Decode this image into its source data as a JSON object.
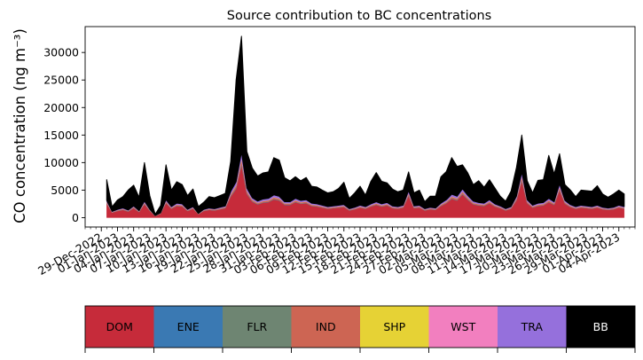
{
  "chart_data": {
    "type": "area",
    "title": "Source contribution to BC concentrations",
    "ylabel": "CO concentration (ng m⁻³)",
    "xlabel": "",
    "ylim": [
      -1700,
      34700
    ],
    "xlim": [
      "2022-12-26",
      "2023-04-07"
    ],
    "yticks": [
      0,
      5000,
      10000,
      15000,
      20000,
      25000,
      30000
    ],
    "ytick_labels": [
      "0",
      "5000",
      "10000",
      "15000",
      "20000",
      "25000",
      "30000"
    ],
    "xticks": [
      "2022-12-29",
      "2023-01-01",
      "2023-01-04",
      "2023-01-07",
      "2023-01-10",
      "2023-01-13",
      "2023-01-16",
      "2023-01-19",
      "2023-01-22",
      "2023-01-25",
      "2023-01-28",
      "2023-01-31",
      "2023-02-03",
      "2023-02-06",
      "2023-02-09",
      "2023-02-12",
      "2023-02-15",
      "2023-02-18",
      "2023-02-21",
      "2023-02-24",
      "2023-02-27",
      "2023-03-02",
      "2023-03-05",
      "2023-03-08",
      "2023-03-11",
      "2023-03-14",
      "2023-03-17",
      "2023-03-20",
      "2023-03-23",
      "2023-03-26",
      "2023-03-29",
      "2023-04-01",
      "2023-04-04"
    ],
    "xtick_labels": [
      "29-Dec-2022",
      "01-Jan-2023",
      "04-Jan-2023",
      "07-Jan-2023",
      "10-Jan-2023",
      "13-Jan-2023",
      "16-Jan-2023",
      "19-Jan-2023",
      "22-Jan-2023",
      "25-Jan-2023",
      "28-Jan-2023",
      "31-Jan-2023",
      "03-Feb-2023",
      "06-Feb-2023",
      "09-Feb-2023",
      "12-Feb-2023",
      "15-Feb-2023",
      "18-Feb-2023",
      "21-Feb-2023",
      "24-Feb-2023",
      "27-Feb-2023",
      "02-Mar-2023",
      "05-Mar-2023",
      "08-Mar-2023",
      "11-Mar-2023",
      "14-Mar-2023",
      "17-Mar-2023",
      "20-Mar-2023",
      "23-Mar-2023",
      "26-Mar-2023",
      "29-Mar-2023",
      "01-Apr-2023",
      "04-Apr-2023"
    ],
    "grid": false,
    "legend_placement": "bottom",
    "legend": [
      {
        "name": "DOM",
        "color": "#c62b3a"
      },
      {
        "name": "ENE",
        "color": "#3a79b3"
      },
      {
        "name": "FLR",
        "color": "#6e8572"
      },
      {
        "name": "IND",
        "color": "#cd6553"
      },
      {
        "name": "SHP",
        "color": "#e6d235"
      },
      {
        "name": "WST",
        "color": "#f27fbf"
      },
      {
        "name": "TRA",
        "color": "#9570dc"
      },
      {
        "name": "BB",
        "color": "#000000"
      }
    ],
    "x": [
      "2022-12-30",
      "2022-12-31",
      "2023-01-01",
      "2023-01-02",
      "2023-01-03",
      "2023-01-04",
      "2023-01-05",
      "2023-01-06",
      "2023-01-07",
      "2023-01-08",
      "2023-01-09",
      "2023-01-10",
      "2023-01-11",
      "2023-01-12",
      "2023-01-13",
      "2023-01-14",
      "2023-01-15",
      "2023-01-16",
      "2023-01-17",
      "2023-01-18",
      "2023-01-19",
      "2023-01-20",
      "2023-01-21",
      "2023-01-22",
      "2023-01-23",
      "2023-01-24",
      "2023-01-25",
      "2023-01-26",
      "2023-01-27",
      "2023-01-28",
      "2023-01-29",
      "2023-01-30",
      "2023-01-31",
      "2023-02-01",
      "2023-02-02",
      "2023-02-03",
      "2023-02-04",
      "2023-02-05",
      "2023-02-06",
      "2023-02-07",
      "2023-02-08",
      "2023-02-09",
      "2023-02-10",
      "2023-02-11",
      "2023-02-12",
      "2023-02-13",
      "2023-02-14",
      "2023-02-15",
      "2023-02-16",
      "2023-02-17",
      "2023-02-18",
      "2023-02-19",
      "2023-02-20",
      "2023-02-21",
      "2023-02-22",
      "2023-02-23",
      "2023-02-24",
      "2023-02-25",
      "2023-02-26",
      "2023-02-27",
      "2023-02-28",
      "2023-03-01",
      "2023-03-02",
      "2023-03-03",
      "2023-03-04",
      "2023-03-05",
      "2023-03-06",
      "2023-03-07",
      "2023-03-08",
      "2023-03-09",
      "2023-03-10",
      "2023-03-11",
      "2023-03-12",
      "2023-03-13",
      "2023-03-14",
      "2023-03-15",
      "2023-03-16",
      "2023-03-17",
      "2023-03-18",
      "2023-03-19",
      "2023-03-20",
      "2023-03-21",
      "2023-03-22",
      "2023-03-23",
      "2023-03-24",
      "2023-03-25",
      "2023-03-26",
      "2023-03-27",
      "2023-03-28",
      "2023-03-29",
      "2023-03-30",
      "2023-03-31",
      "2023-04-01",
      "2023-04-02",
      "2023-04-03",
      "2023-04-04",
      "2023-04-05"
    ],
    "series": [
      {
        "name": "DOM",
        "color": "#c62b3a",
        "values": [
          2500,
          900,
          1200,
          1400,
          1100,
          1700,
          1000,
          2400,
          1200,
          300,
          700,
          2600,
          1600,
          2100,
          2000,
          1200,
          1600,
          600,
          1200,
          1400,
          1300,
          1500,
          1700,
          3800,
          5200,
          9500,
          4300,
          2900,
          2400,
          2700,
          2800,
          3300,
          3100,
          2300,
          2300,
          2800,
          2500,
          2600,
          2100,
          2000,
          1800,
          1600,
          1700,
          1800,
          1900,
          1300,
          1500,
          1800,
          1600,
          2000,
          2300,
          2000,
          2200,
          1700,
          1600,
          1800,
          3900,
          1700,
          1800,
          1300,
          1500,
          1400,
          2100,
          2600,
          3400,
          3100,
          4200,
          3200,
          2400,
          2200,
          2100,
          2600,
          2000,
          1700,
          1300,
          1600,
          3100,
          6600,
          2600,
          1800,
          2100,
          2200,
          2800,
          2300,
          4900,
          2500,
          1900,
          1600,
          1800,
          1700,
          1600,
          1800,
          1500,
          1400,
          1500,
          1800,
          1600
        ]
      },
      {
        "name": "ENE",
        "color": "#3a79b3",
        "values": [
          40,
          15,
          20,
          22,
          18,
          28,
          16,
          40,
          20,
          5,
          12,
          42,
          26,
          34,
          32,
          20,
          26,
          10,
          20,
          22,
          21,
          24,
          28,
          60,
          80,
          150,
          70,
          46,
          38,
          43,
          45,
          52,
          50,
          37,
          37,
          45,
          40,
          42,
          34,
          32,
          29,
          26,
          27,
          29,
          30,
          21,
          24,
          29,
          26,
          32,
          37,
          32,
          35,
          27,
          26,
          29,
          62,
          27,
          29,
          21,
          24,
          22,
          34,
          42,
          54,
          50,
          67,
          51,
          38,
          35,
          34,
          42,
          32,
          27,
          21,
          26,
          50,
          105,
          42,
          29,
          34,
          35,
          45,
          37,
          78,
          40,
          30,
          26,
          29,
          27,
          26,
          29,
          24,
          22,
          24,
          29,
          26
        ]
      },
      {
        "name": "FLR",
        "color": "#6e8572",
        "values": [
          30,
          10,
          14,
          16,
          13,
          20,
          12,
          29,
          14,
          4,
          8,
          31,
          19,
          25,
          24,
          14,
          19,
          7,
          14,
          17,
          16,
          18,
          20,
          45,
          62,
          114,
          52,
          35,
          29,
          32,
          34,
          40,
          37,
          28,
          28,
          34,
          30,
          31,
          25,
          24,
          22,
          19,
          20,
          22,
          23,
          16,
          18,
          22,
          19,
          24,
          28,
          24,
          26,
          20,
          19,
          22,
          47,
          20,
          22,
          16,
          18,
          17,
          25,
          31,
          41,
          37,
          50,
          38,
          29,
          26,
          25,
          31,
          24,
          20,
          16,
          19,
          37,
          79,
          31,
          22,
          25,
          26,
          34,
          28,
          59,
          30,
          23,
          19,
          22,
          20,
          19,
          22,
          18,
          17,
          18,
          22,
          19
        ]
      },
      {
        "name": "IND",
        "color": "#cd6553",
        "values": [
          200,
          75,
          96,
          112,
          88,
          136,
          80,
          192,
          96,
          25,
          56,
          208,
          128,
          168,
          160,
          96,
          128,
          48,
          96,
          112,
          104,
          120,
          136,
          304,
          416,
          760,
          344,
          232,
          192,
          216,
          224,
          264,
          248,
          184,
          184,
          224,
          200,
          208,
          168,
          160,
          144,
          128,
          136,
          144,
          152,
          104,
          120,
          144,
          128,
          160,
          184,
          160,
          176,
          136,
          128,
          144,
          312,
          136,
          144,
          104,
          120,
          112,
          168,
          208,
          272,
          248,
          336,
          256,
          192,
          176,
          168,
          208,
          160,
          136,
          104,
          128,
          248,
          528,
          208,
          144,
          168,
          176,
          224,
          184,
          392,
          200,
          152,
          128,
          144,
          136,
          128,
          144,
          120,
          112,
          120,
          144,
          128
        ]
      },
      {
        "name": "SHP",
        "color": "#e6d235",
        "values": [
          20,
          8,
          10,
          11,
          9,
          14,
          8,
          19,
          10,
          3,
          6,
          21,
          13,
          17,
          16,
          10,
          13,
          5,
          10,
          11,
          10,
          12,
          14,
          30,
          42,
          76,
          34,
          23,
          19,
          22,
          22,
          26,
          25,
          18,
          18,
          22,
          20,
          21,
          17,
          16,
          14,
          13,
          14,
          14,
          15,
          10,
          12,
          14,
          13,
          16,
          18,
          16,
          18,
          14,
          13,
          14,
          31,
          14,
          14,
          10,
          12,
          11,
          17,
          21,
          27,
          25,
          34,
          26,
          19,
          18,
          17,
          21,
          16,
          14,
          10,
          13,
          25,
          53,
          21,
          14,
          17,
          18,
          22,
          18,
          39,
          20,
          15,
          13,
          14,
          14,
          13,
          14,
          12,
          11,
          12,
          14,
          13
        ]
      },
      {
        "name": "WST",
        "color": "#f27fbf",
        "values": [
          40,
          15,
          19,
          22,
          18,
          27,
          16,
          38,
          19,
          5,
          11,
          42,
          26,
          34,
          32,
          19,
          26,
          10,
          19,
          22,
          21,
          24,
          27,
          61,
          83,
          152,
          69,
          46,
          38,
          43,
          45,
          53,
          50,
          37,
          37,
          45,
          40,
          42,
          34,
          32,
          29,
          26,
          27,
          29,
          30,
          21,
          24,
          29,
          26,
          32,
          37,
          32,
          35,
          27,
          26,
          29,
          62,
          27,
          29,
          21,
          24,
          22,
          34,
          42,
          54,
          50,
          67,
          51,
          38,
          35,
          34,
          42,
          32,
          27,
          21,
          26,
          50,
          106,
          42,
          29,
          34,
          35,
          45,
          37,
          78,
          40,
          30,
          26,
          29,
          27,
          26,
          29,
          24,
          22,
          24,
          29,
          26
        ]
      },
      {
        "name": "TRA",
        "color": "#9570dc",
        "values": [
          300,
          110,
          144,
          168,
          132,
          204,
          120,
          288,
          144,
          36,
          84,
          312,
          192,
          252,
          240,
          144,
          192,
          72,
          144,
          168,
          156,
          180,
          204,
          456,
          624,
          1140,
          516,
          348,
          288,
          324,
          336,
          396,
          372,
          276,
          276,
          336,
          300,
          312,
          252,
          240,
          216,
          192,
          204,
          216,
          228,
          156,
          180,
          216,
          192,
          240,
          276,
          240,
          264,
          204,
          192,
          216,
          468,
          204,
          216,
          156,
          180,
          168,
          252,
          312,
          408,
          372,
          504,
          384,
          288,
          264,
          252,
          312,
          240,
          204,
          156,
          192,
          372,
          792,
          312,
          216,
          252,
          264,
          336,
          276,
          588,
          300,
          228,
          192,
          216,
          204,
          192,
          216,
          180,
          168,
          180,
          216,
          192
        ]
      },
      {
        "name": "BB",
        "color": "#000000",
        "values": [
          3770,
          842,
          1697,
          2049,
          3641,
          3771,
          2450,
          6994,
          2456,
          227,
          1323,
          6336,
          2996,
          3899,
          3496,
          2497,
          3196,
          1258,
          1297,
          2060,
          1992,
          2122,
          2275,
          5446,
          18493,
          21065,
          6612,
          5370,
          4557,
          4752,
          4794,
          6769,
          6567,
          4375,
          3800,
          3935,
          3570,
          4034,
          3069,
          3056,
          2747,
          2496,
          2572,
          3046,
          4053,
          1870,
          2617,
          3446,
          2096,
          4096,
          5297,
          4096,
          3563,
          3075,
          2696,
          2746,
          3419,
          2374,
          2746,
          1272,
          2022,
          2148,
          4799,
          5118,
          6644,
          5416,
          4342,
          4094,
          2992,
          3951,
          2899,
          3642,
          2896,
          1772,
          1372,
          2796,
          5218,
          6737,
          3442,
          2246,
          4149,
          4146,
          7794,
          5052,
          5472,
          2872,
          2653,
          1796,
          2749,
          2772,
          2798,
          3549,
          2422,
          1954,
          2422,
          2749,
          2296
        ]
      }
    ]
  }
}
